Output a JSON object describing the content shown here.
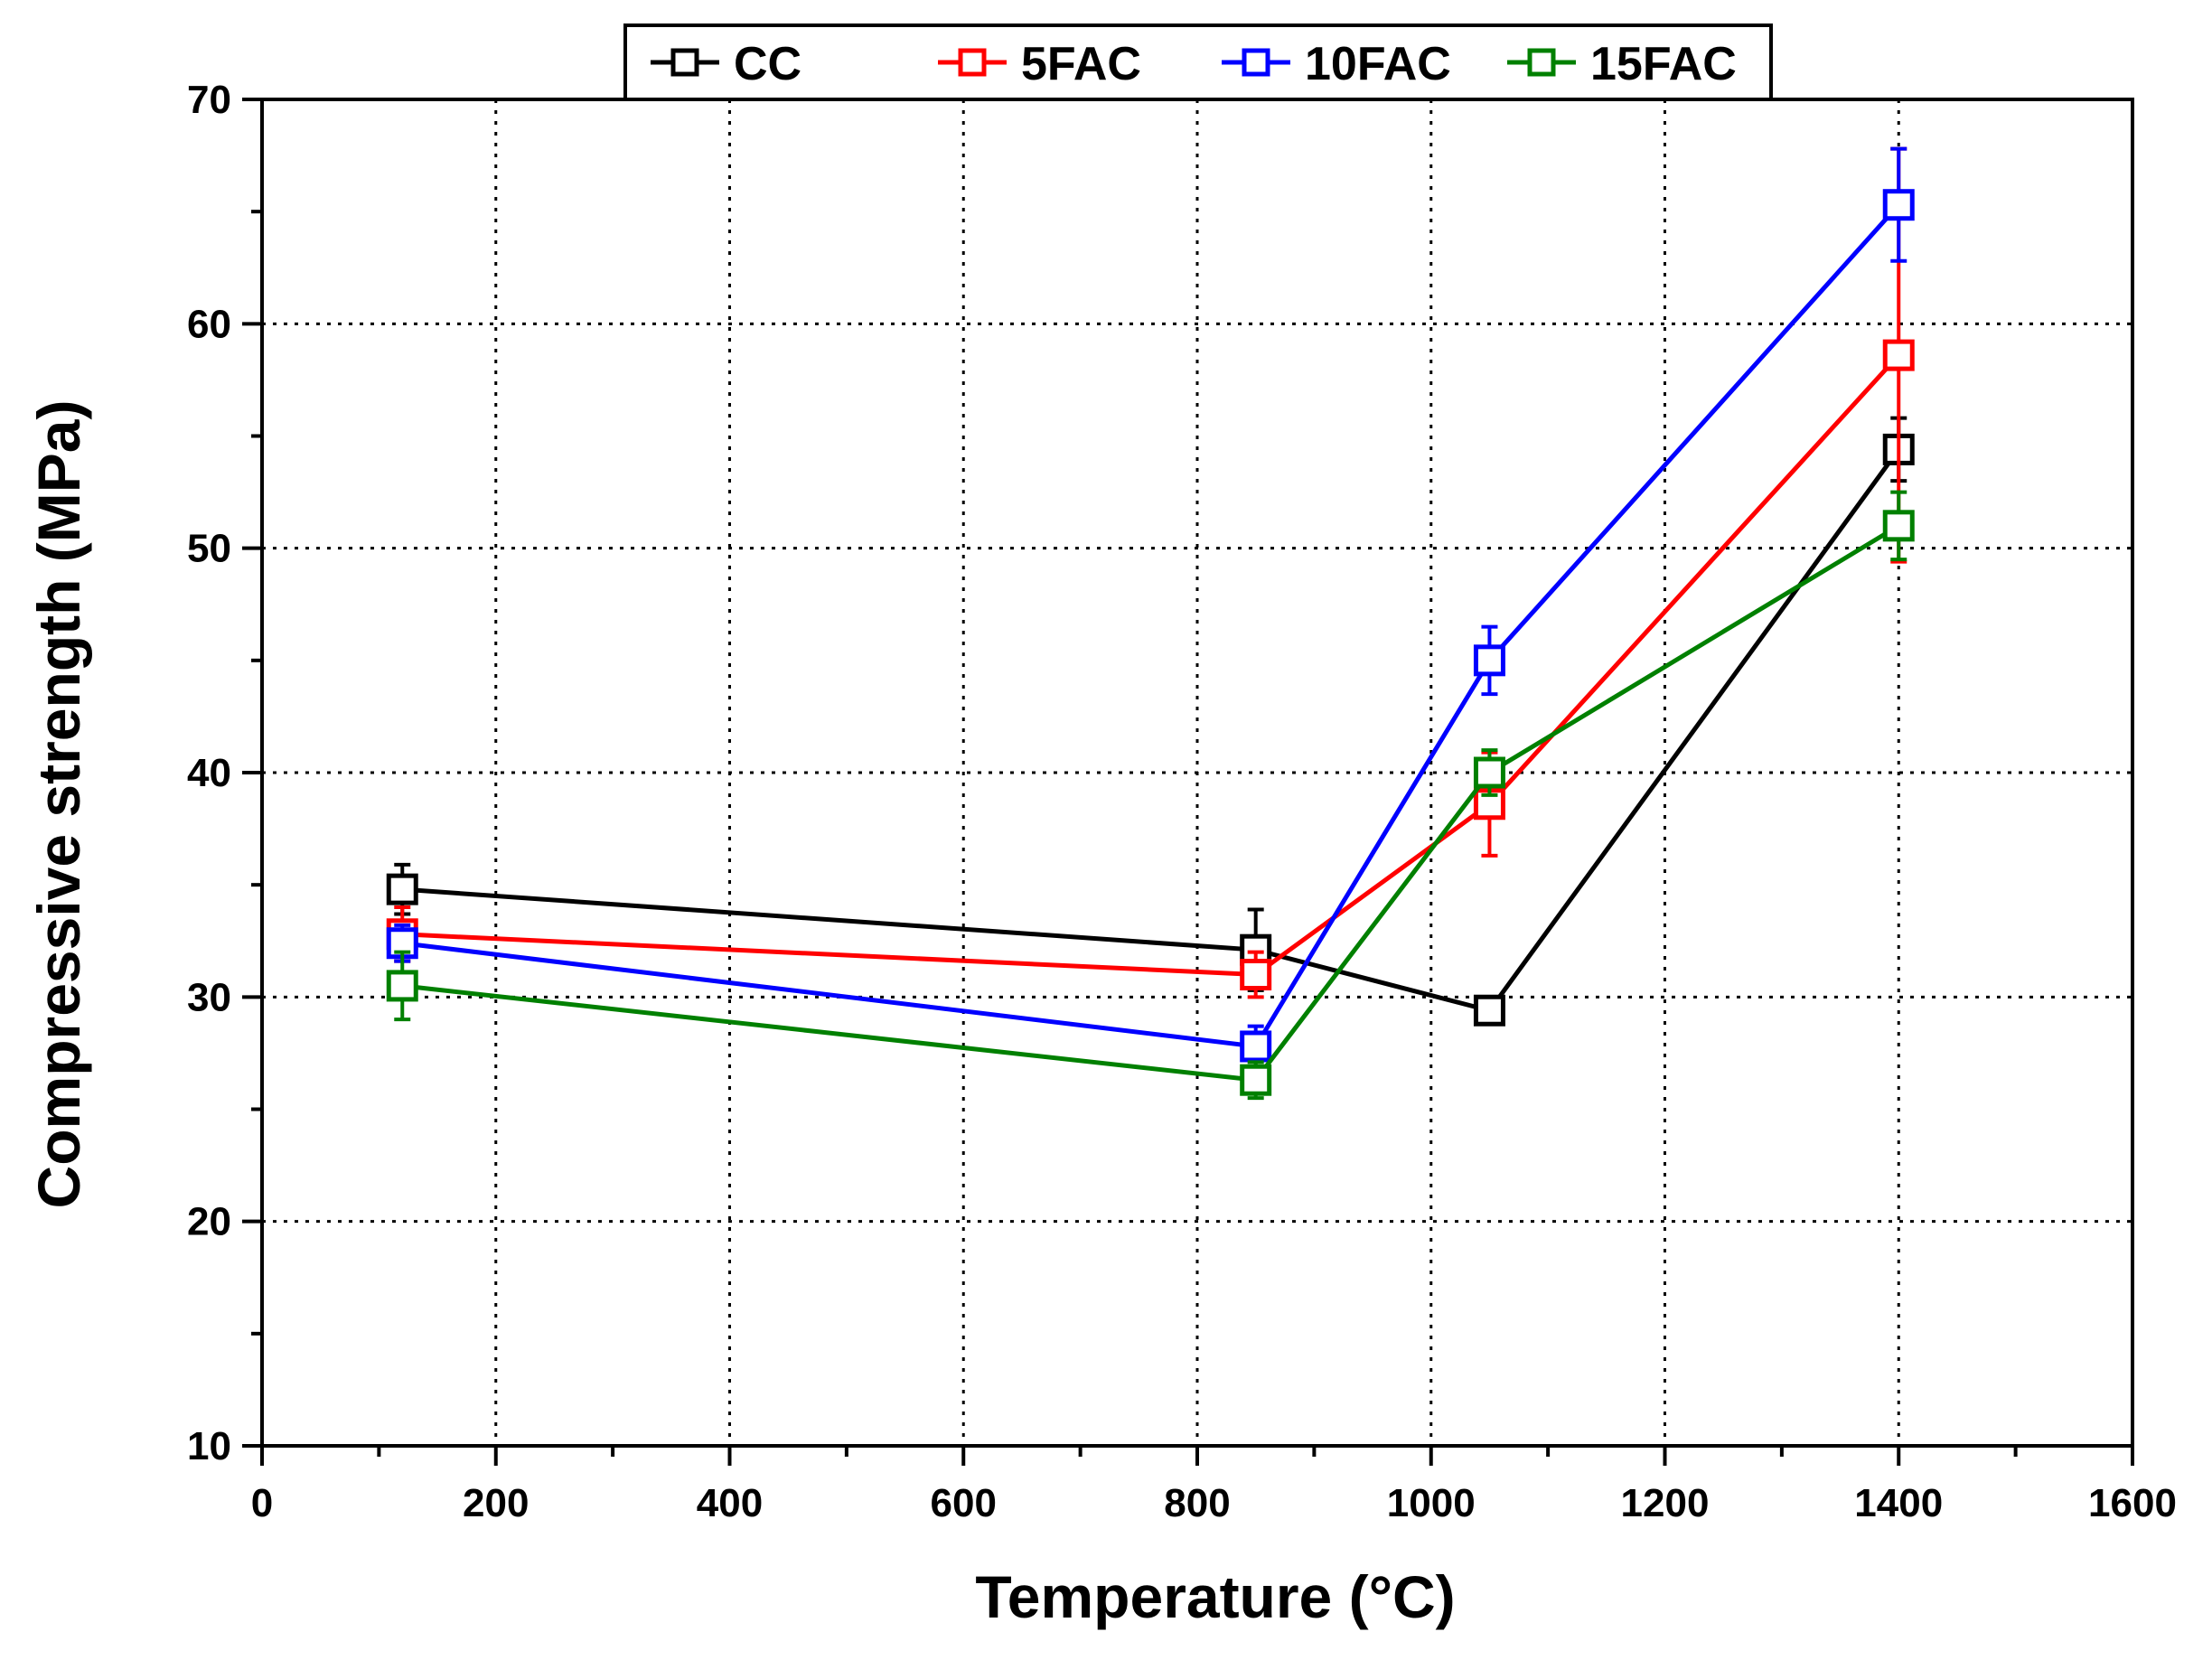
{
  "chart_data": {
    "type": "line",
    "title": "",
    "xlabel": "Temperature (°C)",
    "ylabel": "Compressive strength (MPa)",
    "xlim": [
      0,
      1600
    ],
    "ylim": [
      10,
      70
    ],
    "xticks": [
      0,
      200,
      400,
      600,
      800,
      1000,
      1200,
      1400,
      1600
    ],
    "yticks": [
      10,
      20,
      30,
      40,
      50,
      60,
      70
    ],
    "grid": true,
    "legend_position": "top",
    "series": [
      {
        "name": "CC",
        "color": "#000000",
        "x": [
          120,
          850,
          1050,
          1400
        ],
        "y": [
          34.8,
          32.1,
          29.4,
          54.4
        ],
        "err": [
          1.1,
          1.8,
          0.4,
          1.4
        ]
      },
      {
        "name": "5FAC",
        "color": "#ff0000",
        "x": [
          120,
          850,
          1050,
          1400
        ],
        "y": [
          32.8,
          31.0,
          38.6,
          58.6
        ],
        "err": [
          1.2,
          1.0,
          2.3,
          9.2
        ]
      },
      {
        "name": "10FAC",
        "color": "#0000ff",
        "x": [
          120,
          850,
          1050,
          1400
        ],
        "y": [
          32.4,
          27.8,
          45.0,
          65.3
        ],
        "err": [
          0.8,
          0.9,
          1.5,
          2.5
        ]
      },
      {
        "name": "15FAC",
        "color": "#008000",
        "x": [
          120,
          850,
          1050,
          1400
        ],
        "y": [
          30.5,
          26.3,
          40.0,
          51.0
        ],
        "err": [
          1.5,
          0.8,
          1.0,
          1.5
        ]
      }
    ]
  }
}
